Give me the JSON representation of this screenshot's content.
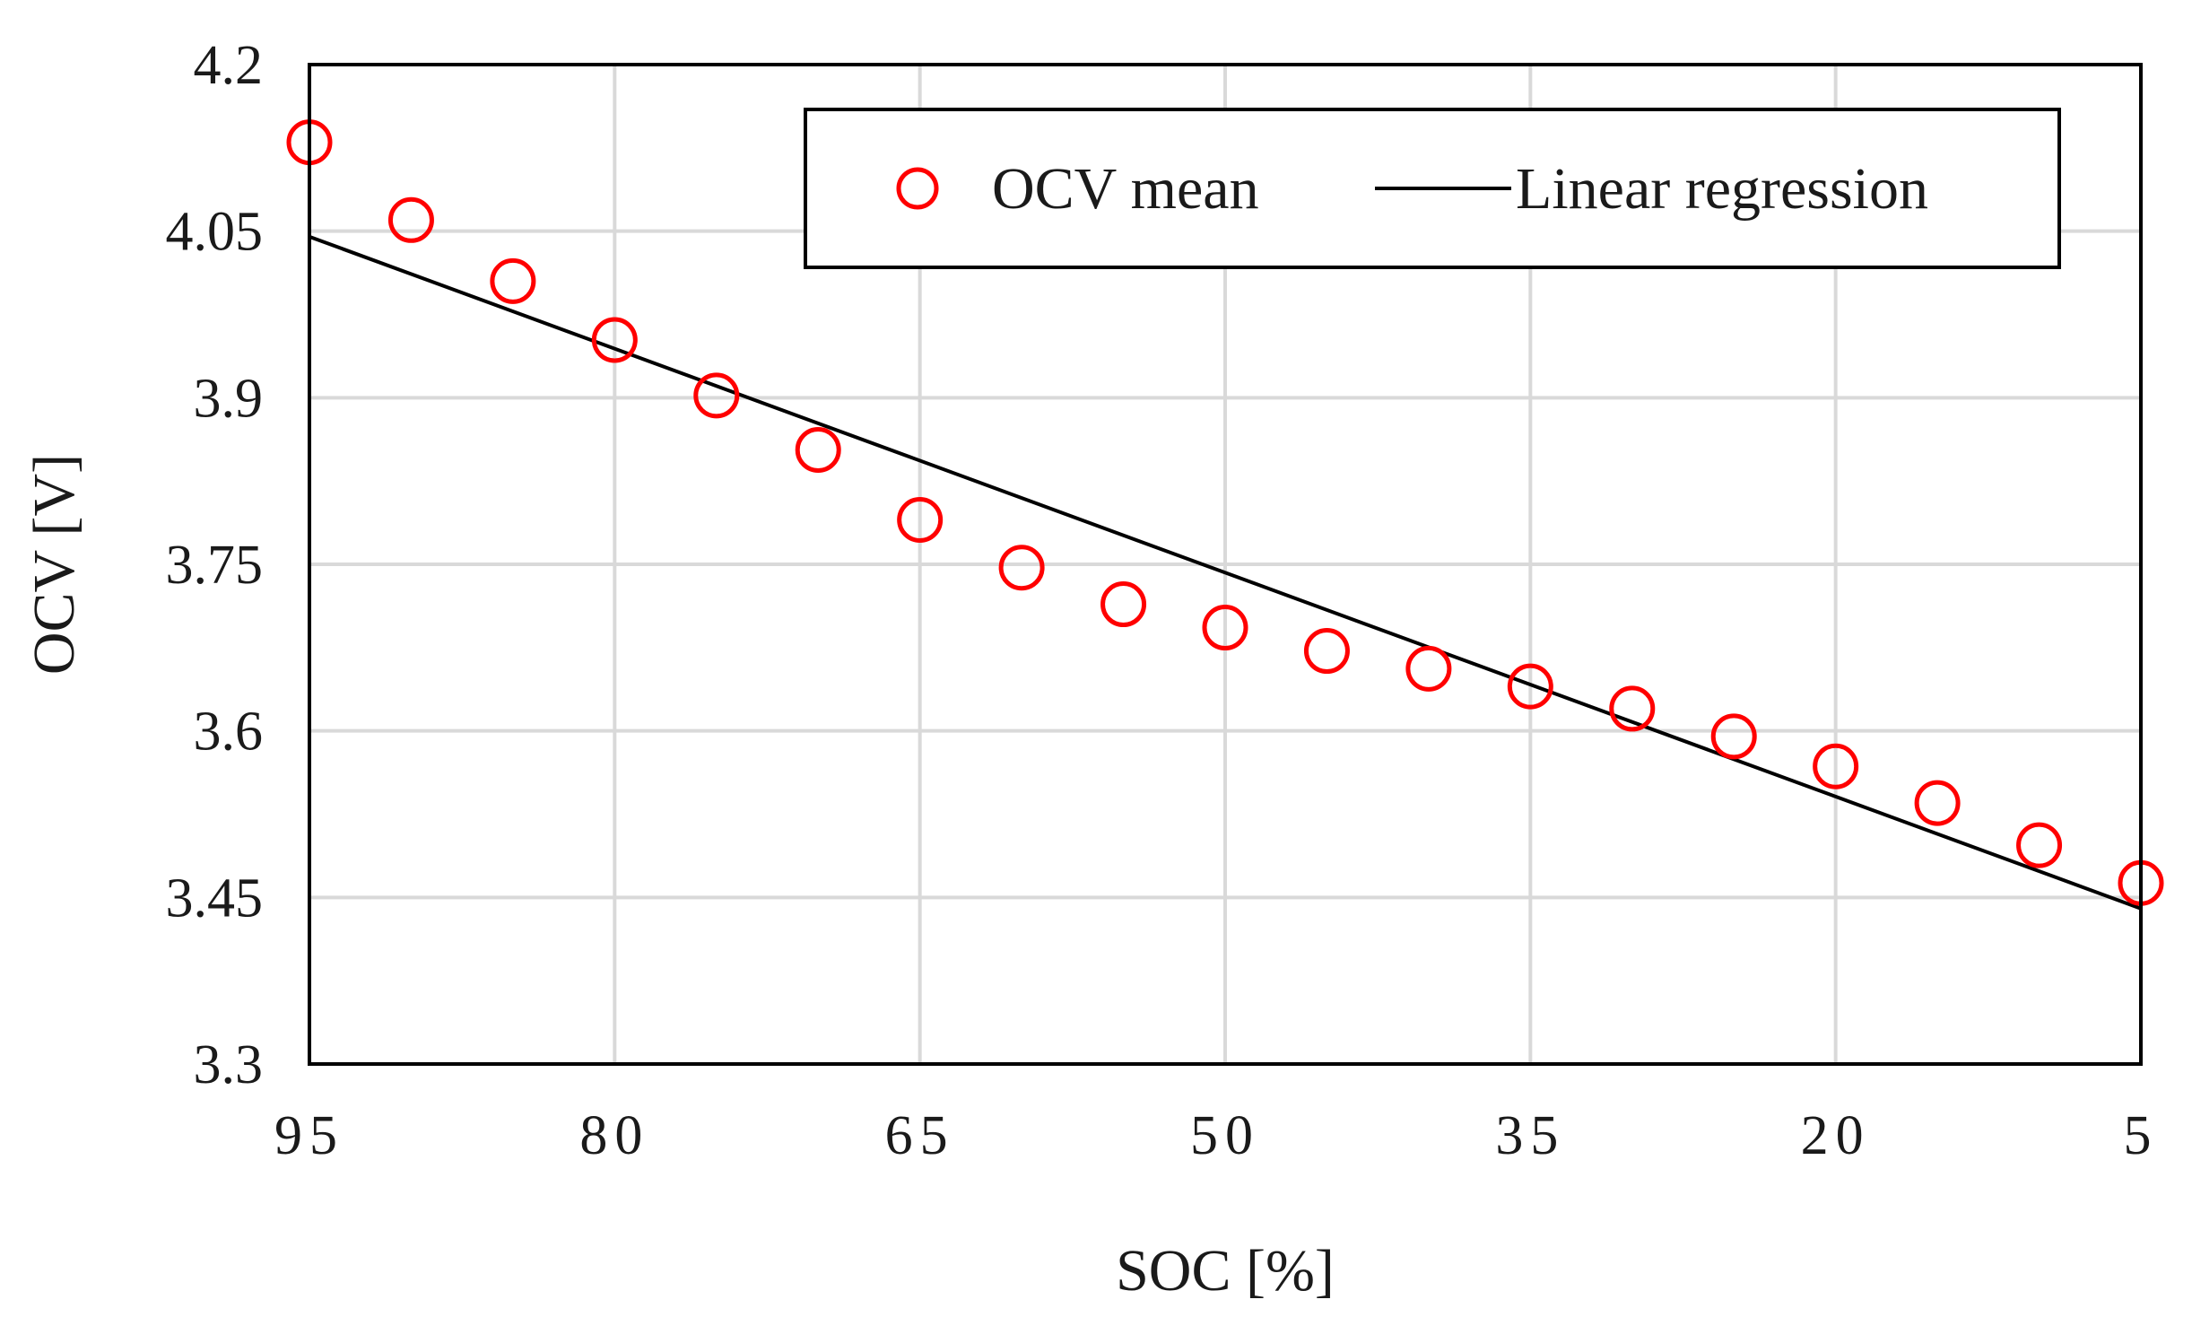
{
  "chart_data": {
    "type": "scatter",
    "title": "",
    "xlabel": "SOC [%]",
    "ylabel": "OCV [V]",
    "xlim": [
      95,
      5
    ],
    "ylim": [
      3.3,
      4.2
    ],
    "x_reversed": true,
    "grid": true,
    "legend_position": "top-right",
    "x_ticks": [
      95,
      80,
      65,
      50,
      35,
      20,
      5
    ],
    "x_tick_labels": [
      "95",
      "80",
      "65",
      "50",
      "35",
      "20",
      "5"
    ],
    "y_ticks": [
      3.3,
      3.45,
      3.6,
      3.75,
      3.9,
      4.05,
      4.2
    ],
    "y_tick_labels": [
      "3.3",
      "3.45",
      "3.6",
      "3.75",
      "3.9",
      "4.05",
      "4.2"
    ],
    "series": [
      {
        "name": "OCV mean",
        "kind": "scatter",
        "marker": "open-circle",
        "color": "#ff0000",
        "x": [
          95,
          90,
          85,
          80,
          75,
          70,
          65,
          60,
          55,
          50,
          45,
          40,
          35,
          30,
          25,
          20,
          15,
          10,
          5
        ],
        "y": [
          4.13,
          4.06,
          4.005,
          3.952,
          3.902,
          3.853,
          3.79,
          3.747,
          3.714,
          3.693,
          3.672,
          3.656,
          3.64,
          3.62,
          3.595,
          3.568,
          3.535,
          3.497,
          3.463
        ]
      },
      {
        "name": "Linear regression",
        "kind": "line",
        "color": "#000000",
        "x": [
          95,
          5
        ],
        "y": [
          4.045,
          3.44
        ]
      }
    ]
  }
}
